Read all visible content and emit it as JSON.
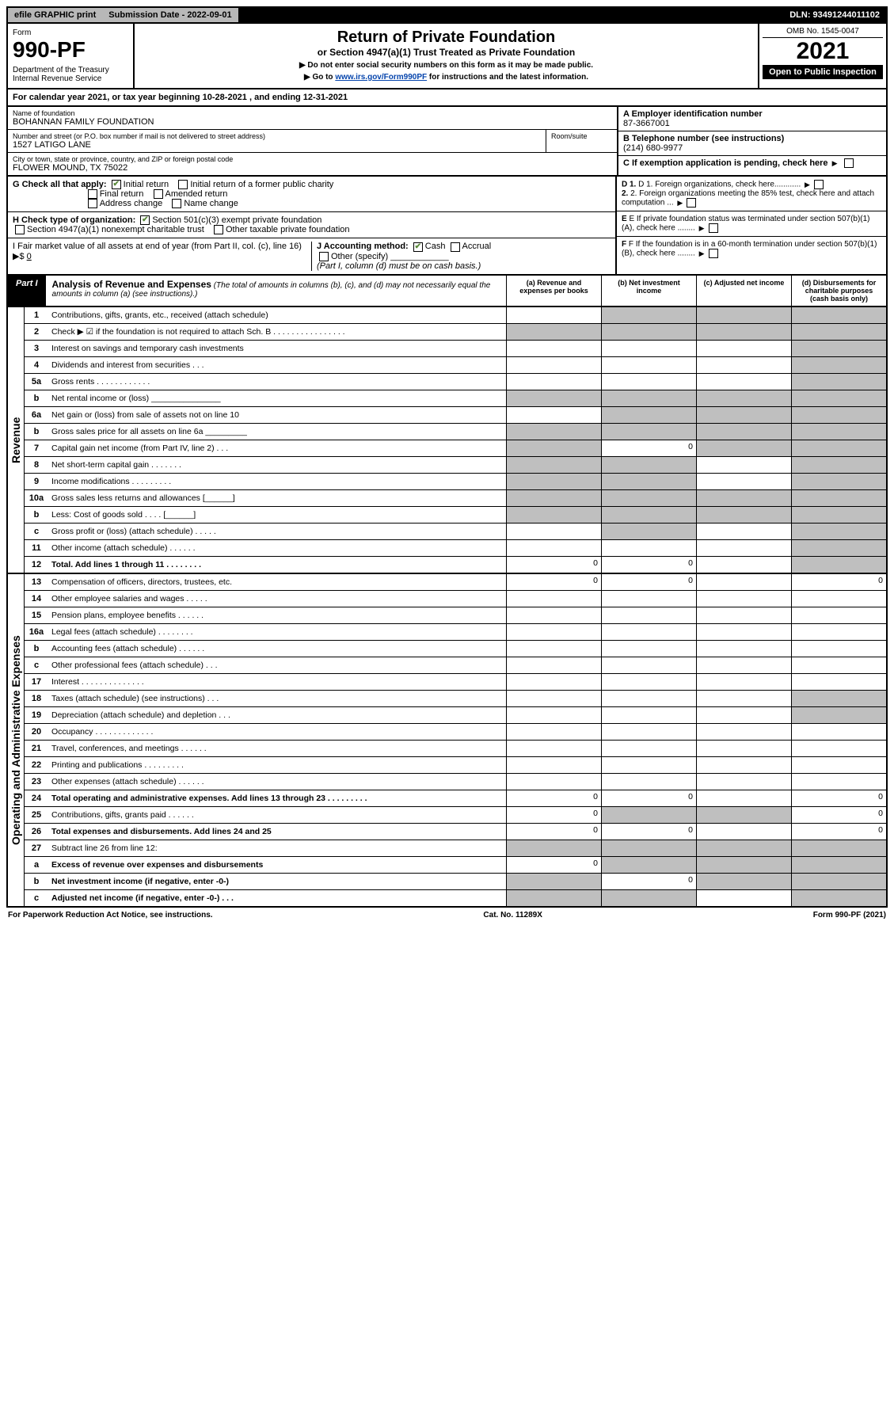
{
  "topbar": {
    "efile": "efile GRAPHIC print",
    "sub_label": "Submission Date - 2022-09-01",
    "dln": "DLN: 93491244011102"
  },
  "header": {
    "form_label": "Form",
    "form_number": "990-PF",
    "dept": "Department of the Treasury\nInternal Revenue Service",
    "title": "Return of Private Foundation",
    "subtitle": "or Section 4947(a)(1) Trust Treated as Private Foundation",
    "note1": "▶ Do not enter social security numbers on this form as it may be made public.",
    "note2": "▶ Go to www.irs.gov/Form990PF for instructions and the latest information.",
    "omb": "OMB No. 1545-0047",
    "year": "2021",
    "inspection": "Open to Public Inspection"
  },
  "cal_year": "For calendar year 2021, or tax year beginning 10-28-2021                          , and ending 12-31-2021",
  "entity": {
    "name_label": "Name of foundation",
    "name": "BOHANNAN FAMILY FOUNDATION",
    "addr_label": "Number and street (or P.O. box number if mail is not delivered to street address)",
    "addr": "1527 LATIGO LANE",
    "room_label": "Room/suite",
    "city_label": "City or town, state or province, country, and ZIP or foreign postal code",
    "city": "FLOWER MOUND, TX  75022",
    "a_label": "A Employer identification number",
    "a_val": "87-3667001",
    "b_label": "B Telephone number (see instructions)",
    "b_val": "(214) 680-9977",
    "c_label": "C If exemption application is pending, check here"
  },
  "checks": {
    "g": "G Check all that apply:",
    "g_items": [
      "Initial return",
      "Initial return of a former public charity",
      "Final return",
      "Amended return",
      "Address change",
      "Name change"
    ],
    "h": "H Check type of organization:",
    "h_items": [
      "Section 501(c)(3) exempt private foundation",
      "Section 4947(a)(1) nonexempt charitable trust",
      "Other taxable private foundation"
    ],
    "i": "I Fair market value of all assets at end of year (from Part II, col. (c), line 16) ▶$",
    "i_val": "0",
    "j": "J Accounting method:",
    "j_items": [
      "Cash",
      "Accrual",
      "Other (specify)"
    ],
    "j_note": "(Part I, column (d) must be on cash basis.)",
    "d1": "D 1. Foreign organizations, check here............",
    "d2": "2. Foreign organizations meeting the 85% test, check here and attach computation ...",
    "e": "E If private foundation status was terminated under section 507(b)(1)(A), check here ........",
    "f": "F If the foundation is in a 60-month termination under section 507(b)(1)(B), check here ........"
  },
  "part1": {
    "label": "Part I",
    "title": "Analysis of Revenue and Expenses",
    "note": "(The total of amounts in columns (b), (c), and (d) may not necessarily equal the amounts in column (a) (see instructions).)",
    "col_a": "(a) Revenue and expenses per books",
    "col_b": "(b) Net investment income",
    "col_c": "(c) Adjusted net income",
    "col_d": "(d) Disbursements for charitable purposes (cash basis only)",
    "section_rev": "Revenue",
    "section_exp": "Operating and Administrative Expenses"
  },
  "lines": [
    {
      "no": "1",
      "desc": "Contributions, gifts, grants, etc., received (attach schedule)",
      "a": "",
      "b": "g",
      "c": "g",
      "d": "g"
    },
    {
      "no": "2",
      "desc": "Check ▶ ☑ if the foundation is not required to attach Sch. B   .  .  .  .  .  .  .  .  .  .  .  .  .  .  .  .",
      "a": "g",
      "b": "g",
      "c": "g",
      "d": "g"
    },
    {
      "no": "3",
      "desc": "Interest on savings and temporary cash investments",
      "a": "",
      "b": "",
      "c": "",
      "d": "g"
    },
    {
      "no": "4",
      "desc": "Dividends and interest from securities   .  .  .",
      "a": "",
      "b": "",
      "c": "",
      "d": "g"
    },
    {
      "no": "5a",
      "desc": "Gross rents   .  .  .  .  .  .  .  .  .  .  .  .",
      "a": "",
      "b": "",
      "c": "",
      "d": "g"
    },
    {
      "no": "b",
      "desc": "Net rental income or (loss)  _______________",
      "a": "g",
      "b": "g",
      "c": "g",
      "d": "g"
    },
    {
      "no": "6a",
      "desc": "Net gain or (loss) from sale of assets not on line 10",
      "a": "",
      "b": "g",
      "c": "g",
      "d": "g"
    },
    {
      "no": "b",
      "desc": "Gross sales price for all assets on line 6a _________",
      "a": "g",
      "b": "g",
      "c": "g",
      "d": "g"
    },
    {
      "no": "7",
      "desc": "Capital gain net income (from Part IV, line 2)   .  .  .",
      "a": "g",
      "b": "0",
      "c": "g",
      "d": "g"
    },
    {
      "no": "8",
      "desc": "Net short-term capital gain  .  .  .  .  .  .  .",
      "a": "g",
      "b": "g",
      "c": "",
      "d": "g"
    },
    {
      "no": "9",
      "desc": "Income modifications  .  .  .  .  .  .  .  .  .",
      "a": "g",
      "b": "g",
      "c": "",
      "d": "g"
    },
    {
      "no": "10a",
      "desc": "Gross sales less returns and allowances  [______]",
      "a": "g",
      "b": "g",
      "c": "g",
      "d": "g"
    },
    {
      "no": "b",
      "desc": "Less: Cost of goods sold   .  .  .  .  [______]",
      "a": "g",
      "b": "g",
      "c": "g",
      "d": "g"
    },
    {
      "no": "c",
      "desc": "Gross profit or (loss) (attach schedule)   .  .  .  .  .",
      "a": "",
      "b": "g",
      "c": "",
      "d": "g"
    },
    {
      "no": "11",
      "desc": "Other income (attach schedule)   .  .  .  .  .  .",
      "a": "",
      "b": "",
      "c": "",
      "d": "g"
    },
    {
      "no": "12",
      "desc": "Total. Add lines 1 through 11   .  .  .  .  .  .  .  .",
      "a": "0",
      "b": "0",
      "c": "",
      "d": "g",
      "bold": true
    }
  ],
  "exp_lines": [
    {
      "no": "13",
      "desc": "Compensation of officers, directors, trustees, etc.",
      "a": "0",
      "b": "0",
      "c": "",
      "d": "0"
    },
    {
      "no": "14",
      "desc": "Other employee salaries and wages   .  .  .  .  .",
      "a": "",
      "b": "",
      "c": "",
      "d": ""
    },
    {
      "no": "15",
      "desc": "Pension plans, employee benefits  .  .  .  .  .  .",
      "a": "",
      "b": "",
      "c": "",
      "d": ""
    },
    {
      "no": "16a",
      "desc": "Legal fees (attach schedule)  .  .  .  .  .  .  .  .",
      "a": "",
      "b": "",
      "c": "",
      "d": ""
    },
    {
      "no": "b",
      "desc": "Accounting fees (attach schedule)  .  .  .  .  .  .",
      "a": "",
      "b": "",
      "c": "",
      "d": ""
    },
    {
      "no": "c",
      "desc": "Other professional fees (attach schedule)    .  .  .",
      "a": "",
      "b": "",
      "c": "",
      "d": ""
    },
    {
      "no": "17",
      "desc": "Interest  .  .  .  .  .  .  .  .  .  .  .  .  .  .",
      "a": "",
      "b": "",
      "c": "",
      "d": ""
    },
    {
      "no": "18",
      "desc": "Taxes (attach schedule) (see instructions)    .  .  .",
      "a": "",
      "b": "",
      "c": "",
      "d": "g"
    },
    {
      "no": "19",
      "desc": "Depreciation (attach schedule) and depletion    .  .  .",
      "a": "",
      "b": "",
      "c": "",
      "d": "g"
    },
    {
      "no": "20",
      "desc": "Occupancy  .  .  .  .  .  .  .  .  .  .  .  .  .",
      "a": "",
      "b": "",
      "c": "",
      "d": ""
    },
    {
      "no": "21",
      "desc": "Travel, conferences, and meetings  .  .  .  .  .  .",
      "a": "",
      "b": "",
      "c": "",
      "d": ""
    },
    {
      "no": "22",
      "desc": "Printing and publications  .  .  .  .  .  .  .  .  .",
      "a": "",
      "b": "",
      "c": "",
      "d": ""
    },
    {
      "no": "23",
      "desc": "Other expenses (attach schedule)  .  .  .  .  .  .",
      "a": "",
      "b": "",
      "c": "",
      "d": ""
    },
    {
      "no": "24",
      "desc": "Total operating and administrative expenses. Add lines 13 through 23   .  .  .  .  .  .  .  .  .",
      "a": "0",
      "b": "0",
      "c": "",
      "d": "0",
      "bold": true
    },
    {
      "no": "25",
      "desc": "Contributions, gifts, grants paid     .  .  .  .  .  .",
      "a": "0",
      "b": "g",
      "c": "g",
      "d": "0"
    },
    {
      "no": "26",
      "desc": "Total expenses and disbursements. Add lines 24 and 25",
      "a": "0",
      "b": "0",
      "c": "",
      "d": "0",
      "bold": true
    },
    {
      "no": "27",
      "desc": "Subtract line 26 from line 12:",
      "a": "g",
      "b": "g",
      "c": "g",
      "d": "g"
    },
    {
      "no": "a",
      "desc": "Excess of revenue over expenses and disbursements",
      "a": "0",
      "b": "g",
      "c": "g",
      "d": "g",
      "bold": true
    },
    {
      "no": "b",
      "desc": "Net investment income (if negative, enter -0-)",
      "a": "g",
      "b": "0",
      "c": "g",
      "d": "g",
      "bold": true
    },
    {
      "no": "c",
      "desc": "Adjusted net income (if negative, enter -0-)   .  .  .",
      "a": "g",
      "b": "g",
      "c": "",
      "d": "g",
      "bold": true
    }
  ],
  "footer": {
    "left": "For Paperwork Reduction Act Notice, see instructions.",
    "mid": "Cat. No. 11289X",
    "right": "Form 990-PF (2021)"
  },
  "colors": {
    "grey": "#bfbfbf",
    "link": "#0645ad",
    "green": "#5a8a3a"
  }
}
